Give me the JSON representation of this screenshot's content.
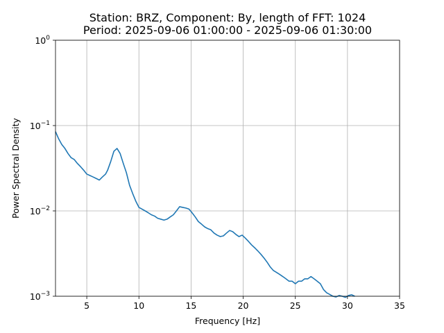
{
  "chart_data": {
    "type": "line",
    "title_lines": [
      "Station: BRZ, Component: By, length of FFT: 1024",
      "Period: 2025-09-06 01:00:00 - 2025-09-06 01:30:00"
    ],
    "xlabel": "Frequency [Hz]",
    "ylabel": "Power Spectral Density",
    "xlim": [
      2,
      35
    ],
    "ylim": [
      0.001,
      1
    ],
    "yscale": "log",
    "grid": true,
    "x_ticks": [
      5,
      10,
      15,
      20,
      25,
      30,
      35
    ],
    "y_ticks": [
      {
        "value": 0.001,
        "base": "10",
        "exp": "−3"
      },
      {
        "value": 0.01,
        "base": "10",
        "exp": "−2"
      },
      {
        "value": 0.1,
        "base": "10",
        "exp": "−1"
      },
      {
        "value": 1,
        "base": "10",
        "exp": "0"
      }
    ],
    "series_color": "#1f77b4",
    "points": [
      [
        2.0,
        0.085
      ],
      [
        2.3,
        0.07
      ],
      [
        2.6,
        0.06
      ],
      [
        2.9,
        0.054
      ],
      [
        3.2,
        0.047
      ],
      [
        3.5,
        0.042
      ],
      [
        3.8,
        0.04
      ],
      [
        4.1,
        0.036
      ],
      [
        4.4,
        0.033
      ],
      [
        4.7,
        0.03
      ],
      [
        5.0,
        0.027
      ],
      [
        5.3,
        0.026
      ],
      [
        5.6,
        0.025
      ],
      [
        5.9,
        0.024
      ],
      [
        6.2,
        0.023
      ],
      [
        6.5,
        0.025
      ],
      [
        6.8,
        0.027
      ],
      [
        7.0,
        0.03
      ],
      [
        7.3,
        0.038
      ],
      [
        7.6,
        0.05
      ],
      [
        7.9,
        0.054
      ],
      [
        8.2,
        0.047
      ],
      [
        8.5,
        0.036
      ],
      [
        8.8,
        0.028
      ],
      [
        9.1,
        0.02
      ],
      [
        9.4,
        0.016
      ],
      [
        9.7,
        0.013
      ],
      [
        10.0,
        0.011
      ],
      [
        10.3,
        0.0105
      ],
      [
        10.6,
        0.01
      ],
      [
        10.9,
        0.0095
      ],
      [
        11.2,
        0.009
      ],
      [
        11.5,
        0.0087
      ],
      [
        11.8,
        0.0082
      ],
      [
        12.1,
        0.008
      ],
      [
        12.4,
        0.0078
      ],
      [
        12.7,
        0.008
      ],
      [
        13.0,
        0.0085
      ],
      [
        13.3,
        0.009
      ],
      [
        13.6,
        0.01
      ],
      [
        13.9,
        0.0112
      ],
      [
        14.2,
        0.011
      ],
      [
        14.5,
        0.0108
      ],
      [
        14.8,
        0.0105
      ],
      [
        15.1,
        0.0095
      ],
      [
        15.4,
        0.0085
      ],
      [
        15.7,
        0.0075
      ],
      [
        16.0,
        0.007
      ],
      [
        16.3,
        0.0065
      ],
      [
        16.6,
        0.0062
      ],
      [
        16.9,
        0.006
      ],
      [
        17.2,
        0.0055
      ],
      [
        17.5,
        0.0052
      ],
      [
        17.8,
        0.005
      ],
      [
        18.1,
        0.0051
      ],
      [
        18.4,
        0.0055
      ],
      [
        18.7,
        0.0059
      ],
      [
        19.0,
        0.0057
      ],
      [
        19.3,
        0.0053
      ],
      [
        19.6,
        0.005
      ],
      [
        19.9,
        0.0052
      ],
      [
        20.2,
        0.0048
      ],
      [
        20.5,
        0.0044
      ],
      [
        20.8,
        0.004
      ],
      [
        21.1,
        0.0037
      ],
      [
        21.4,
        0.0034
      ],
      [
        21.7,
        0.0031
      ],
      [
        22.0,
        0.0028
      ],
      [
        22.3,
        0.0025
      ],
      [
        22.6,
        0.0022
      ],
      [
        22.9,
        0.002
      ],
      [
        23.2,
        0.0019
      ],
      [
        23.5,
        0.0018
      ],
      [
        23.8,
        0.0017
      ],
      [
        24.1,
        0.0016
      ],
      [
        24.4,
        0.0015
      ],
      [
        24.7,
        0.0015
      ],
      [
        25.0,
        0.0014
      ],
      [
        25.3,
        0.0015
      ],
      [
        25.6,
        0.0015
      ],
      [
        25.9,
        0.0016
      ],
      [
        26.2,
        0.0016
      ],
      [
        26.5,
        0.0017
      ],
      [
        26.8,
        0.0016
      ],
      [
        27.1,
        0.0015
      ],
      [
        27.4,
        0.0014
      ],
      [
        27.7,
        0.0012
      ],
      [
        28.0,
        0.0011
      ],
      [
        28.3,
        0.00105
      ],
      [
        28.6,
        0.001
      ],
      [
        28.9,
        0.00098
      ],
      [
        29.2,
        0.00102
      ],
      [
        29.5,
        0.001
      ],
      [
        29.8,
        0.00097
      ],
      [
        30.1,
        0.00102
      ],
      [
        30.4,
        0.00104
      ],
      [
        30.7,
        0.001
      ]
    ]
  }
}
